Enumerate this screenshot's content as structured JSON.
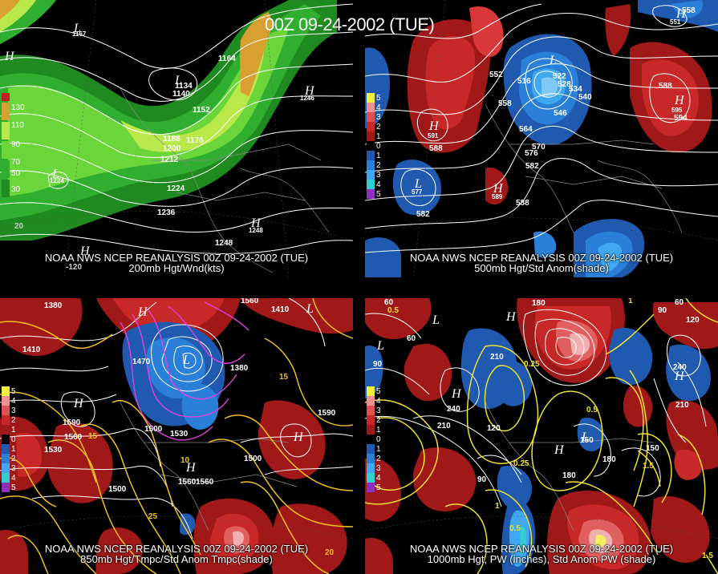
{
  "header": {
    "datestamp": "00Z 09-24-2002 (TUE)"
  },
  "panels": {
    "p200": {
      "caption1": "NOAA NWS NCEP REANALYSIS 00Z 09-24-2002 (TUE)",
      "caption2": "200mb Hgt/Wnd(kts)",
      "legend": [
        "130",
        "110",
        "90",
        "70",
        "50",
        "30"
      ],
      "contour_labels": [
        "1164",
        "1134",
        "1140",
        "1152",
        "1188",
        "1176",
        "1200",
        "1212",
        "1224",
        "1224",
        "1236",
        "1248",
        "1248",
        "1167",
        "1246",
        "-120",
        "20"
      ],
      "centers": [
        "L",
        "L",
        "H",
        "H",
        "H",
        "L",
        "H"
      ]
    },
    "p500": {
      "caption1": "NOAA NWS NCEP REANALYSIS 00Z 09-24-2002 (TUE)",
      "caption2": "500mb Hgt/Std Anom(shade)",
      "legend": [
        "5",
        "4",
        "3",
        "2",
        "1",
        "0",
        "1",
        "2",
        "3",
        "4",
        "5"
      ],
      "contour_labels": [
        "552",
        "558",
        "516",
        "522",
        "528",
        "534",
        "540",
        "546",
        "564",
        "570",
        "576",
        "582",
        "588",
        "588",
        "594",
        "588",
        "582",
        "558",
        "551",
        "577",
        "591",
        "595",
        "589"
      ],
      "centers": [
        "L",
        "H",
        "L",
        "H",
        "H",
        "H"
      ]
    },
    "p850": {
      "caption1": "NOAA NWS NCEP REANALYSIS 00Z 09-24-2002 (TUE)",
      "caption2": "850mb Hgt/Tmpc/Std Anom Tmpc(shade)",
      "legend": [
        "5",
        "4",
        "3",
        "2",
        "1",
        "0",
        "1",
        "2",
        "3",
        "4",
        "5"
      ],
      "contour_labels": [
        "1380",
        "1410",
        "1470",
        "1500",
        "1530",
        "1590",
        "1560",
        "1530",
        "1500",
        "1560",
        "1590",
        "1500",
        "1380",
        "1410",
        "1560",
        "1560",
        "15",
        "10",
        "25",
        "20",
        "15"
      ],
      "centers": [
        "L",
        "H",
        "H",
        "L",
        "H",
        "H"
      ]
    },
    "p1000": {
      "caption1": "NOAA NWS NCEP REANALYSIS 00Z 09-24-2002 (TUE)",
      "caption2": "1000mb Hgt, PW (inches), Std Anom PW (shade)",
      "legend": [
        "5",
        "4",
        "3",
        "2",
        "1",
        "0",
        "1",
        "2",
        "3",
        "4",
        "5"
      ],
      "contour_labels": [
        "60",
        "90",
        "60",
        "180",
        "210",
        "240",
        "210",
        "120",
        "90",
        "180",
        "150",
        "180",
        "210",
        "240",
        "150",
        "120",
        "90",
        "60",
        "0.5",
        "0.25",
        "0.5",
        "0.25",
        "1",
        "1.5",
        "1.5",
        "1",
        "0.5"
      ],
      "centers": [
        "L",
        "L",
        "H",
        "H",
        "L",
        "H",
        "H"
      ]
    }
  }
}
